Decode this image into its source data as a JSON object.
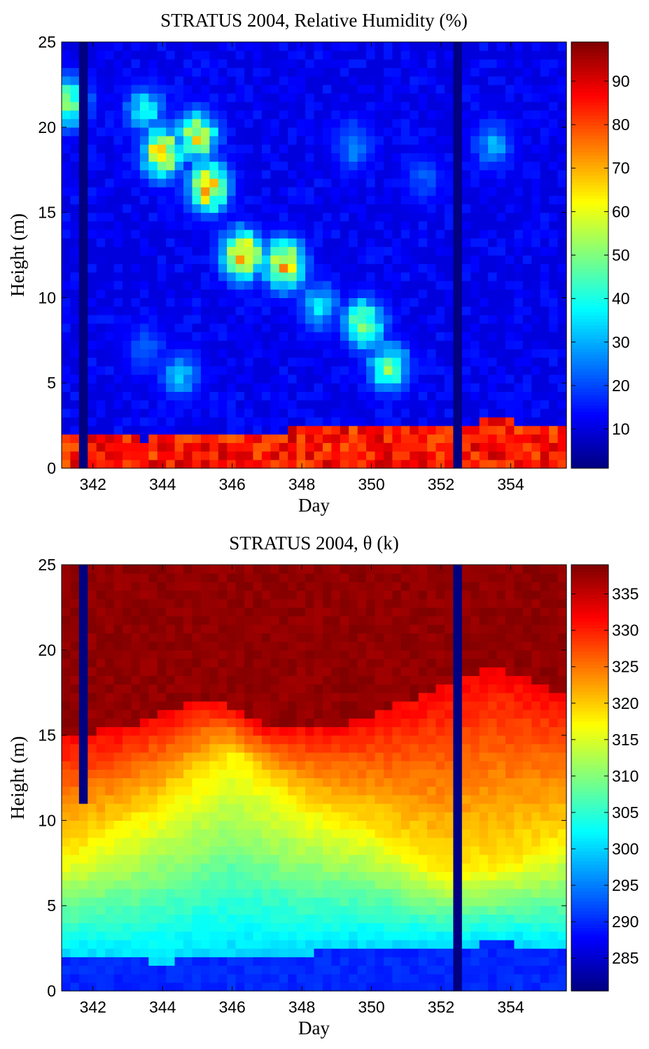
{
  "chart_data": [
    {
      "type": "heatmap",
      "title": "STRATUS 2004, Relative Humidity (%)",
      "xlabel": "Day",
      "ylabel": "Height (m)",
      "xlim": [
        341.1,
        355.6
      ],
      "ylim": [
        0,
        25
      ],
      "xticks": [
        342,
        344,
        346,
        348,
        350,
        352,
        354
      ],
      "yticks": [
        0,
        5,
        10,
        15,
        20,
        25
      ],
      "colorbar": {
        "range": [
          1,
          99
        ],
        "ticks": [
          10,
          20,
          30,
          40,
          50,
          60,
          70,
          80,
          90
        ]
      },
      "colormap": "jet",
      "gaps": [
        {
          "day": [
            341.5,
            341.75
          ],
          "height": [
            0,
            25
          ]
        },
        {
          "day": [
            352.3,
            352.5
          ],
          "height": [
            0,
            25
          ]
        }
      ],
      "surface_layer_top_m": [
        {
          "day": 341.2,
          "height": 1.9
        },
        {
          "day": 342.5,
          "height": 2.0
        },
        {
          "day": 343.5,
          "height": 1.7
        },
        {
          "day": 344.0,
          "height": 1.9
        },
        {
          "day": 346.0,
          "height": 2.0
        },
        {
          "day": 348.0,
          "height": 2.3
        },
        {
          "day": 350.0,
          "height": 2.6
        },
        {
          "day": 352.0,
          "height": 2.7
        },
        {
          "day": 354.0,
          "height": 2.8
        },
        {
          "day": 355.5,
          "height": 2.3
        }
      ],
      "surface_layer_rh": 85,
      "upper_air_rh": 10,
      "moist_features": [
        {
          "day": 341.3,
          "height": 21.5,
          "rh": 55
        },
        {
          "day": 343.5,
          "height": 21.0,
          "rh": 38
        },
        {
          "day": 344.0,
          "height": 18.5,
          "rh": 70
        },
        {
          "day": 345.0,
          "height": 19.5,
          "rh": 62
        },
        {
          "day": 345.3,
          "height": 16.5,
          "rh": 72
        },
        {
          "day": 346.3,
          "height": 12.5,
          "rh": 75
        },
        {
          "day": 347.5,
          "height": 12.0,
          "rh": 70
        },
        {
          "day": 348.5,
          "height": 9.5,
          "rh": 35
        },
        {
          "day": 349.8,
          "height": 8.5,
          "rh": 55
        },
        {
          "day": 350.5,
          "height": 6.0,
          "rh": 50
        },
        {
          "day": 344.5,
          "height": 5.5,
          "rh": 32
        },
        {
          "day": 343.5,
          "height": 7.0,
          "rh": 25
        },
        {
          "day": 349.5,
          "height": 19.0,
          "rh": 28
        },
        {
          "day": 353.5,
          "height": 19.0,
          "rh": 30
        },
        {
          "day": 351.5,
          "height": 17.0,
          "rh": 22
        }
      ]
    },
    {
      "type": "heatmap",
      "title": "STRATUS 2004, θ (k)",
      "xlabel": "Day",
      "ylabel": "Height (m)",
      "xlim": [
        341.1,
        355.6
      ],
      "ylim": [
        0,
        25
      ],
      "xticks": [
        342,
        344,
        346,
        348,
        350,
        352,
        354
      ],
      "yticks": [
        0,
        5,
        10,
        15,
        20,
        25
      ],
      "colorbar": {
        "range": [
          280.5,
          339
        ],
        "ticks": [
          285,
          290,
          295,
          300,
          305,
          310,
          315,
          320,
          325,
          330,
          335
        ]
      },
      "colormap": "jet",
      "gaps": [
        {
          "day": [
            341.5,
            341.75
          ],
          "height": [
            11,
            25
          ]
        },
        {
          "day": [
            352.3,
            352.5
          ],
          "height": [
            0,
            25
          ]
        }
      ],
      "surface_layer_top_m": [
        {
          "day": 341.2,
          "height": 2.0
        },
        {
          "day": 344.0,
          "height": 1.7
        },
        {
          "day": 346.0,
          "height": 2.0
        },
        {
          "day": 348.0,
          "height": 2.2
        },
        {
          "day": 350.0,
          "height": 2.6
        },
        {
          "day": 352.0,
          "height": 2.7
        },
        {
          "day": 354.0,
          "height": 2.8
        },
        {
          "day": 355.5,
          "height": 2.3
        }
      ],
      "surface_theta": 289,
      "transition_theta": 300,
      "mixed_layer_top_m": [
        {
          "day": 341.2,
          "height": 15.0
        },
        {
          "day": 343.0,
          "height": 15.5
        },
        {
          "day": 345.3,
          "height": 17.3
        },
        {
          "day": 347.0,
          "height": 15.5
        },
        {
          "day": 349.0,
          "height": 15.5
        },
        {
          "day": 351.0,
          "height": 17.0
        },
        {
          "day": 352.0,
          "height": 17.8
        },
        {
          "day": 353.5,
          "height": 19.0
        },
        {
          "day": 355.5,
          "height": 17.5
        }
      ],
      "mixed_layer_theta_top": 332,
      "warm_core_top_m": [
        {
          "day": 341.2,
          "height": 8.0
        },
        {
          "day": 344.0,
          "height": 11.0
        },
        {
          "day": 346.0,
          "height": 14.0
        },
        {
          "day": 348.0,
          "height": 11.0
        },
        {
          "day": 350.0,
          "height": 9.5
        },
        {
          "day": 352.0,
          "height": 7.0
        },
        {
          "day": 354.0,
          "height": 7.5
        },
        {
          "day": 355.5,
          "height": 9.0
        }
      ],
      "upper_theta": 338
    }
  ]
}
